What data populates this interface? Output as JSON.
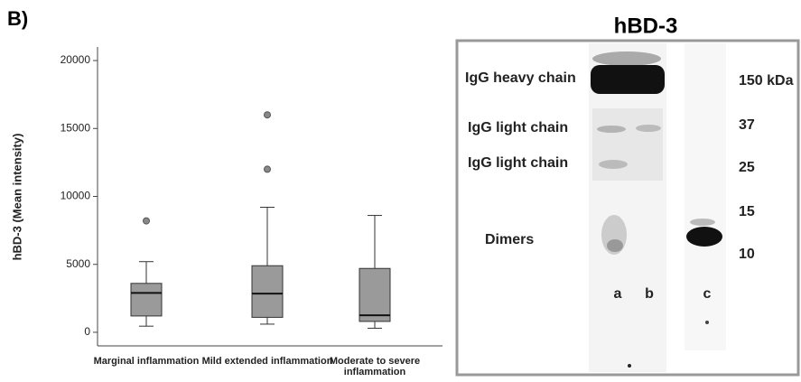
{
  "panel_label": "B)",
  "chart_data": {
    "type": "box",
    "y_label": "hBD-3 (Mean intensity)",
    "categories": [
      "Marginal inflammation",
      "Mild extended inflammation",
      "Moderate to severe inflammation"
    ],
    "boxes": [
      {
        "whislo": 450,
        "q1": 1200,
        "median": 2900,
        "q3": 3600,
        "whishi": 5200,
        "fliers": [
          8200
        ]
      },
      {
        "whislo": 600,
        "q1": 1100,
        "median": 2850,
        "q3": 4900,
        "whishi": 9200,
        "fliers": [
          12000,
          16000
        ]
      },
      {
        "whislo": 300,
        "q1": 800,
        "median": 1250,
        "q3": 4700,
        "whishi": 8600,
        "fliers": []
      }
    ],
    "color": "#9a9a9a",
    "ylim": [
      -1000,
      21000
    ],
    "yticks": [
      0,
      5000,
      10000,
      15000,
      20000
    ]
  },
  "blot": {
    "title": "hBD-3",
    "band_labels": [
      "IgG heavy chain",
      "IgG light chain",
      "IgG light chain",
      "Dimers"
    ],
    "markers": [
      "150 kDa",
      "37",
      "25",
      "15",
      "10"
    ],
    "lanes": [
      "a",
      "b",
      "c"
    ]
  }
}
